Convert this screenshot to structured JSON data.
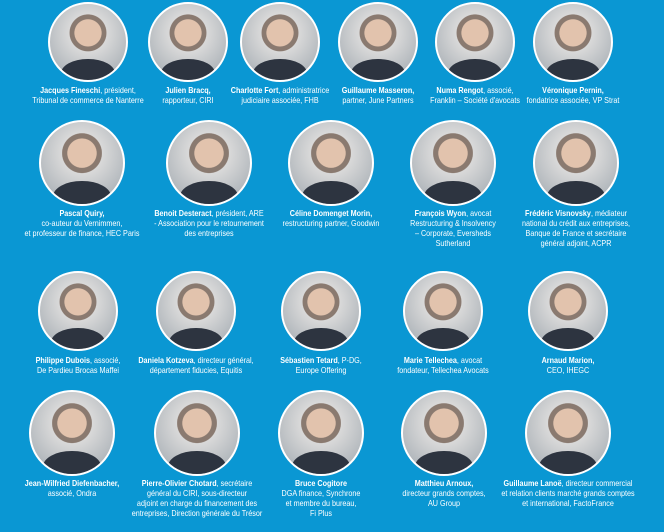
{
  "background_color": "#0a97d3",
  "people": [
    {
      "name": "Jacques Fineschi",
      "role": ", président,\nTribunal de commerce de Nanterre"
    },
    {
      "name": "Julien Bracq,",
      "role": "\nrapporteur, CIRI"
    },
    {
      "name": "Charlotte Fort",
      "role": ", administratrice\njudiciaire associée, FHB"
    },
    {
      "name": "Guillaume  Masseron,",
      "role": "\npartner, June Partners"
    },
    {
      "name": "Numa Rengot",
      "role": ", associé,\nFranklin – Société d'avocats"
    },
    {
      "name": "Véronique Pernin,",
      "role": "\nfondatrice associée, VP Strat"
    },
    {
      "name": "Pascal Quiry,",
      "role": "\nco-auteur du Vernimmen,\net professeur de finance, HEC Paris"
    },
    {
      "name": "Benoit Desteract",
      "role": ", président, ARE\n- Association pour le retournement\ndes entreprises"
    },
    {
      "name": "Céline Domenget Morin,",
      "role": "\nrestructuring partner, Goodwin"
    },
    {
      "name": "François Wyon",
      "role": ", avocat\nRestructuring & Insolvency\n– Corporate, Eversheds\nSutherland"
    },
    {
      "name": "Frédéric Visnovsky",
      "role": ", médiateur\nnational du crédit aux entreprises,\nBanque de France et secrétaire\ngénéral adjoint, ACPR"
    },
    {
      "name": "Philippe Dubois",
      "role": ", associé,\nDe Pardieu Brocas Maffei"
    },
    {
      "name": "Daniela Kotzeva",
      "role": ", directeur général,\ndépartement fiducies, Equitis"
    },
    {
      "name": "Sébastien Tetard",
      "role": ", P-DG,\nEurope Offering"
    },
    {
      "name": "Marie Tellechea",
      "role": ", avocat\nfondateur, Tellechea Avocats"
    },
    {
      "name": "Arnaud Marion,",
      "role": "\nCEO, IHEGC"
    },
    {
      "name": "Jean-Wilfried Diefenbacher,",
      "role": "\nassocié, Ondra"
    },
    {
      "name": "Pierre-Olivier Chotard",
      "role": ", secrétaire\ngénéral du CIRI, sous-directeur\nadjoint en charge du financement des\nentreprises, Direction générale du Trésor"
    },
    {
      "name": "Bruce Cogitore",
      "role": "\nDGA finance, Synchrone\net membre du bureau,\nFi Plus"
    },
    {
      "name": "Matthieu Arnoux,",
      "role": "\ndirecteur grands comptes,\nAU Group"
    },
    {
      "name": "Guillaume Lanoë",
      "role": ", directeur commercial\net relation clients marché grands comptes\net international, FactoFrance"
    }
  ]
}
